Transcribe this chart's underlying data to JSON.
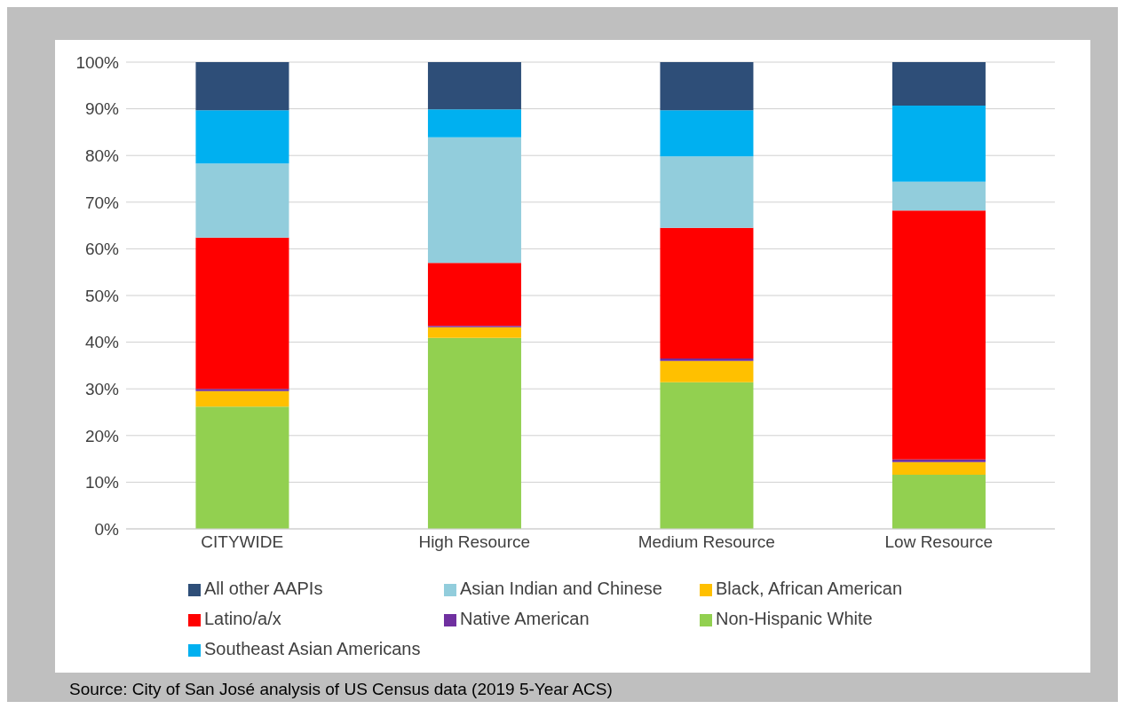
{
  "chart_data": {
    "type": "bar",
    "stacked": true,
    "categories": [
      "CITYWIDE",
      "High Resource",
      "Medium Resource",
      "Low Resource"
    ],
    "series": [
      {
        "name": "Non-Hispanic White",
        "color": "#92d050",
        "values": [
          26.2,
          40.9,
          31.4,
          11.6
        ]
      },
      {
        "name": "Black, African American",
        "color": "#ffc000",
        "values": [
          3.3,
          2.3,
          4.6,
          2.7
        ]
      },
      {
        "name": "Native American",
        "color": "#7030a0",
        "values": [
          0.5,
          0.3,
          0.5,
          0.6
        ]
      },
      {
        "name": "Latino/a/x",
        "color": "#ff0000",
        "values": [
          32.4,
          13.5,
          28.0,
          53.3
        ]
      },
      {
        "name": "Asian Indian and Chinese",
        "color": "#92cddc",
        "values": [
          15.9,
          26.9,
          15.3,
          6.2
        ]
      },
      {
        "name": "Southeast Asian Americans",
        "color": "#00b0f0",
        "values": [
          11.4,
          6.0,
          9.9,
          16.3
        ]
      },
      {
        "name": "All other AAPIs",
        "color": "#2e4e78",
        "values": [
          10.3,
          10.1,
          10.3,
          9.3
        ]
      }
    ],
    "ylim": [
      0,
      100
    ],
    "yticks": [
      {
        "value": 0,
        "label": "0%"
      },
      {
        "value": 10,
        "label": "10%"
      },
      {
        "value": 20,
        "label": "20%"
      },
      {
        "value": 30,
        "label": "30%"
      },
      {
        "value": 40,
        "label": "40%"
      },
      {
        "value": 50,
        "label": "50%"
      },
      {
        "value": 60,
        "label": "60%"
      },
      {
        "value": 70,
        "label": "70%"
      },
      {
        "value": 80,
        "label": "80%"
      },
      {
        "value": 90,
        "label": "90%"
      },
      {
        "value": 100,
        "label": "100%"
      }
    ],
    "grid": "y",
    "legend": "bottom",
    "annotations": [
      "Source: City of San José analysis of US Census data (2019 5-Year ACS)"
    ]
  }
}
